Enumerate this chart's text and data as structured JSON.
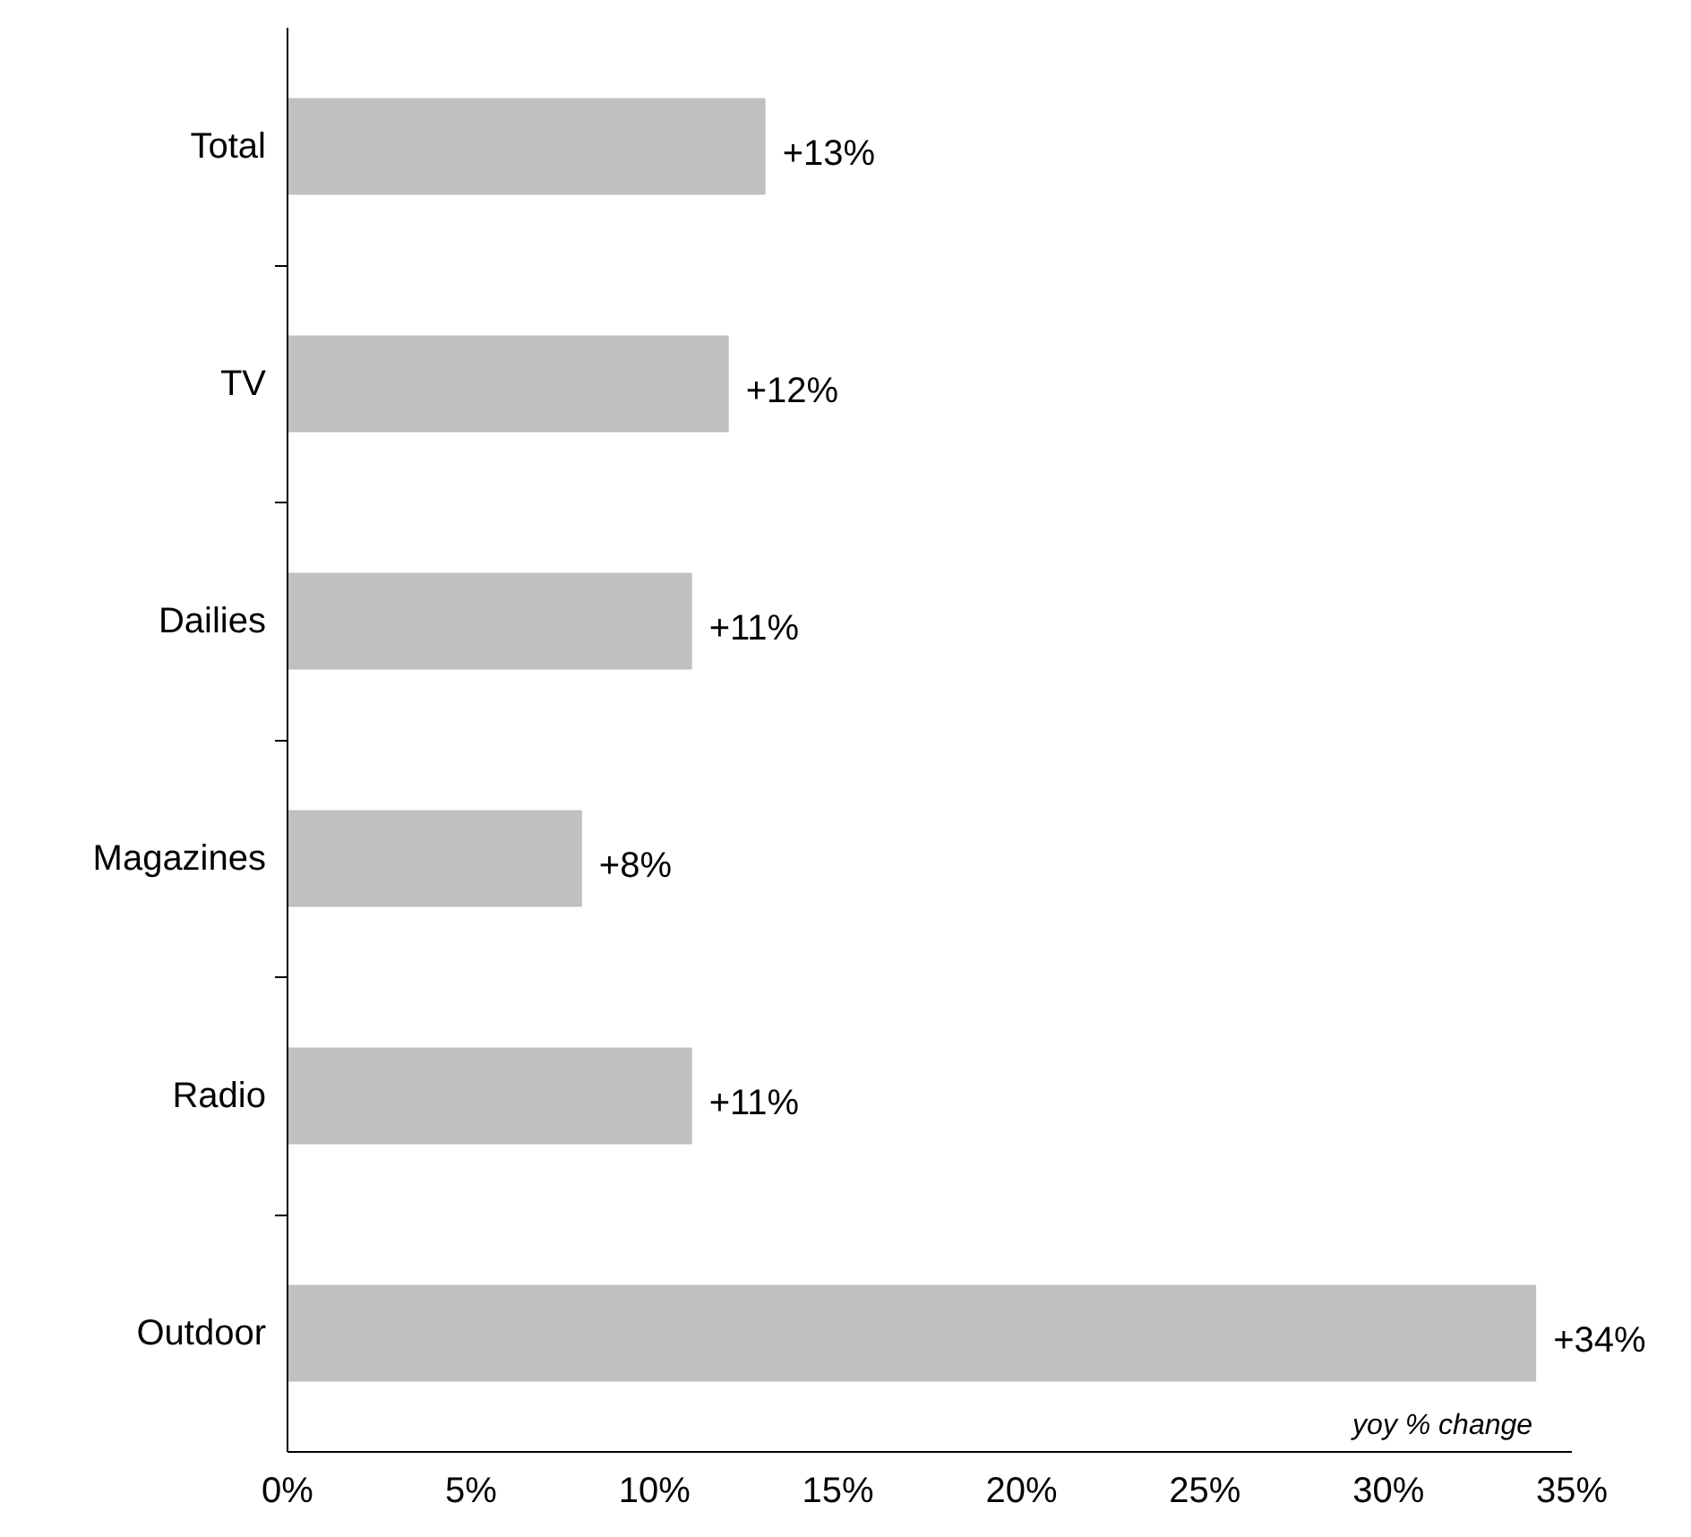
{
  "chart_data": {
    "type": "bar",
    "orientation": "horizontal",
    "categories": [
      "Total",
      "TV",
      "Dailies",
      "Magazines",
      "Radio",
      "Outdoor"
    ],
    "values": [
      13,
      12,
      11,
      8,
      11,
      34
    ],
    "value_labels": [
      "+13%",
      "+12%",
      "+11%",
      "+8%",
      "+11%",
      "+34%"
    ],
    "color": "#c0c0c0",
    "xlim": [
      0,
      35
    ],
    "xticks": [
      {
        "value": 0,
        "label": "0%"
      },
      {
        "value": 5,
        "label": "5%"
      },
      {
        "value": 10,
        "label": "10%"
      },
      {
        "value": 15,
        "label": "15%"
      },
      {
        "value": 20,
        "label": "20%"
      },
      {
        "value": 25,
        "label": "25%"
      },
      {
        "value": 30,
        "label": "30%"
      },
      {
        "value": 35,
        "label": "35%"
      }
    ],
    "annotations": [
      "yoy % change"
    ],
    "grid": false
  }
}
